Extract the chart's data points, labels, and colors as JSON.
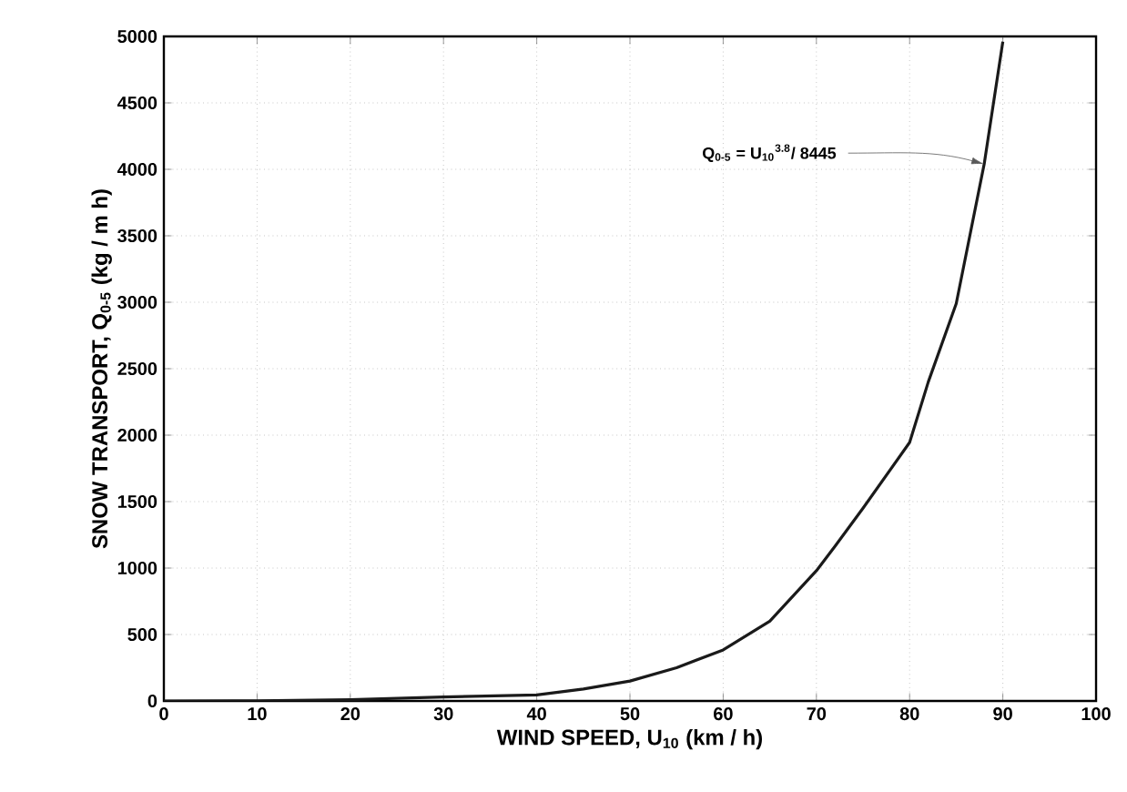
{
  "chart_data": {
    "type": "line",
    "xlabel": "WIND SPEED, U$_{10}$ (km / h)",
    "ylabel": "SNOW TRANSPORT, Q$_{0-5}$ (kg / m h)",
    "x": [
      0,
      10,
      20,
      30,
      40,
      45,
      50,
      55,
      60,
      65,
      70,
      72,
      75,
      80,
      82,
      85,
      88,
      90
    ],
    "series": [
      {
        "color": "#1a1a1a",
        "values": [
          0,
          1,
          10,
          30,
          45,
          90,
          150,
          250,
          384,
          600,
          980,
          1164,
          1450,
          1945,
          2400,
          2990,
          4040,
          4960
        ]
      }
    ],
    "xlim": [
      0,
      100
    ],
    "ylim": [
      0,
      5000
    ],
    "xticks": [
      0,
      10,
      20,
      30,
      40,
      50,
      60,
      70,
      80,
      90,
      100
    ],
    "yticks": [
      0,
      500,
      1000,
      1500,
      2000,
      2500,
      3000,
      3500,
      4000,
      4500,
      5000
    ],
    "grid": true,
    "line_style": "solid",
    "marker": "none",
    "annotations": [
      {
        "text": "Q$_{0-5}$ = U$_{10}$$^{3.8}$/ 8445",
        "x": 88,
        "y": 4040
      }
    ]
  }
}
